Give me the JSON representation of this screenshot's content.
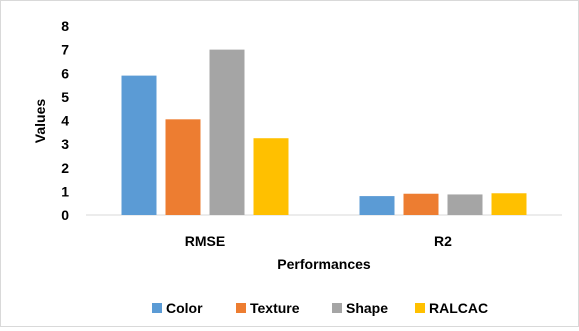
{
  "chart_data": {
    "type": "bar",
    "categories": [
      "RMSE",
      "R2"
    ],
    "series": [
      {
        "name": "Color",
        "values": [
          5.9,
          0.8
        ],
        "color": "#5b9bd5"
      },
      {
        "name": "Texture",
        "values": [
          4.05,
          0.9
        ],
        "color": "#ed7d31"
      },
      {
        "name": "Shape",
        "values": [
          7.0,
          0.87
        ],
        "color": "#a5a5a5"
      },
      {
        "name": "RALCAC",
        "values": [
          3.25,
          0.92
        ],
        "color": "#ffc000"
      }
    ],
    "xlabel": "Performances",
    "ylabel": "Values",
    "ylim": [
      0,
      8
    ],
    "yticks": [
      "0",
      "1",
      "2",
      "3",
      "4",
      "5",
      "6",
      "7",
      "8"
    ],
    "grid": false,
    "legend_position": "bottom"
  }
}
